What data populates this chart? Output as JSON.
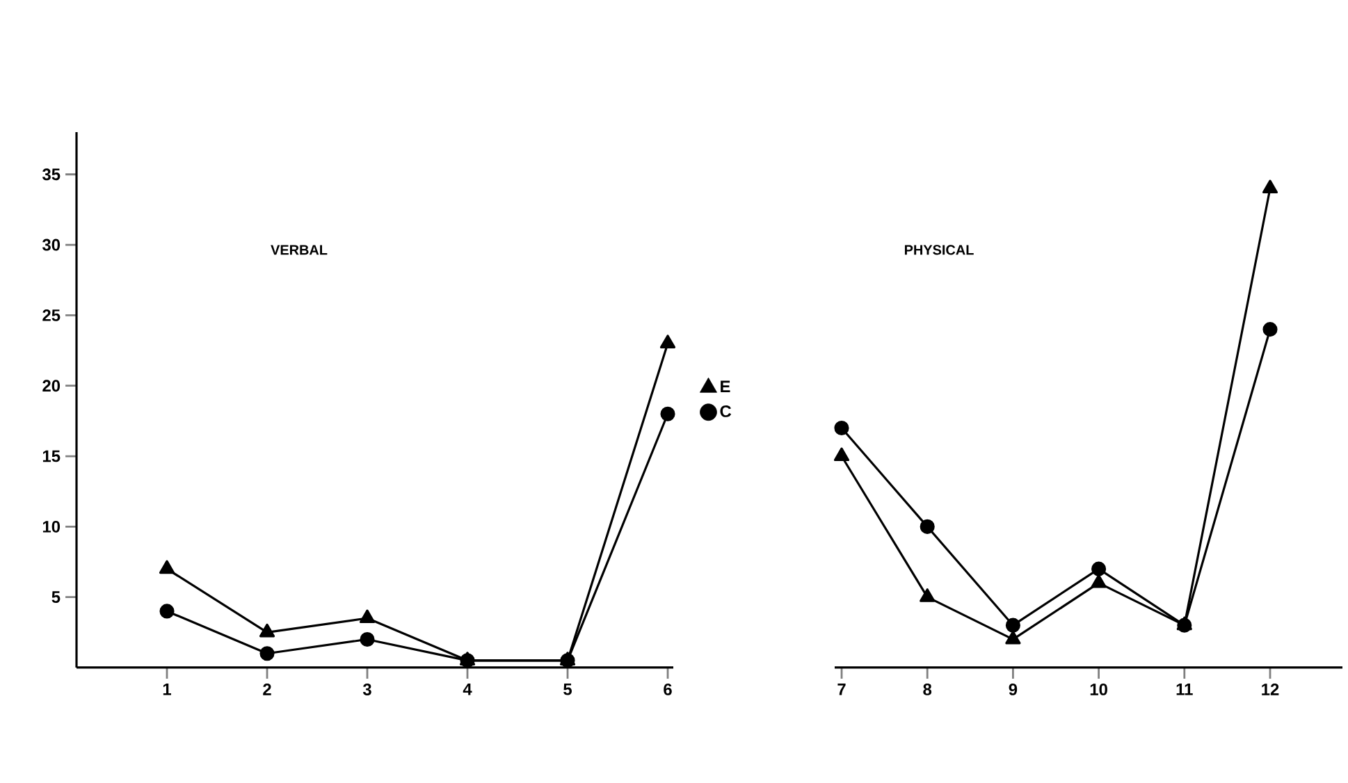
{
  "chart_data": {
    "type": "line",
    "annotations": [
      "VERBAL",
      "PHYSICAL"
    ],
    "categories": [
      "1",
      "2",
      "3",
      "4",
      "5",
      "6",
      "7",
      "8",
      "9",
      "10",
      "11",
      "12"
    ],
    "ylim": [
      0,
      38
    ],
    "yticks": [
      5,
      10,
      15,
      20,
      25,
      30,
      35
    ],
    "legend": "center",
    "series": [
      {
        "name": "E",
        "color": "#000000",
        "marker": "triangle",
        "values": [
          7,
          2.5,
          3.5,
          0.5,
          0.5,
          23,
          null,
          null,
          null,
          null,
          null,
          null
        ]
      },
      {
        "name": "C",
        "color": "#000000",
        "marker": "circle",
        "values": [
          4,
          1,
          2,
          0.5,
          0.5,
          18,
          null,
          null,
          null,
          null,
          null,
          null
        ]
      },
      {
        "color": "#000000",
        "marker": "triangle",
        "values": [
          null,
          null,
          null,
          null,
          null,
          null,
          15,
          5,
          2,
          6,
          3,
          34
        ]
      },
      {
        "color": "#000000",
        "marker": "circle",
        "values": [
          null,
          null,
          null,
          null,
          null,
          null,
          17,
          10,
          3,
          7,
          3,
          24
        ]
      }
    ]
  }
}
